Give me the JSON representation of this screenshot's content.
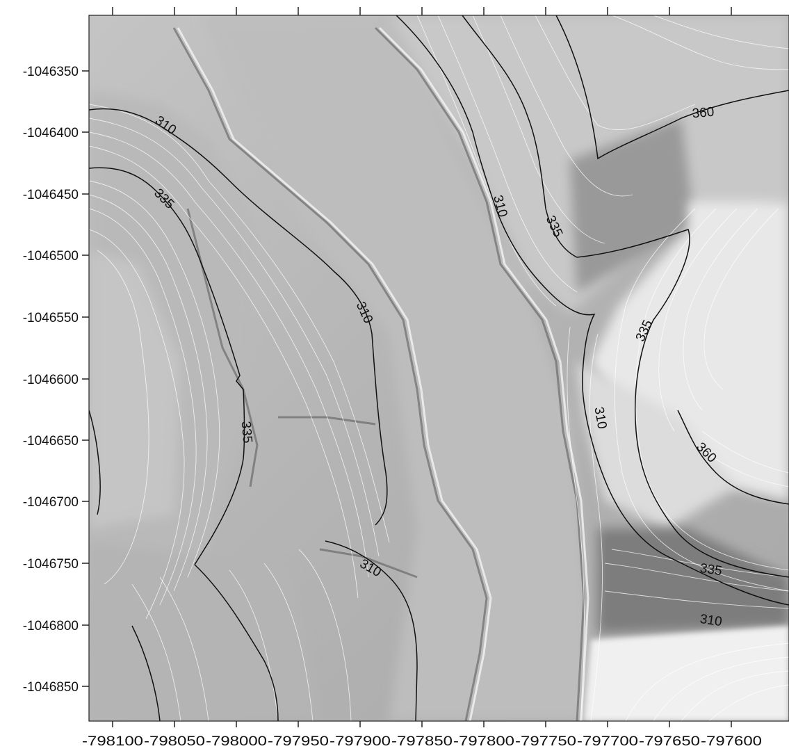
{
  "map": {
    "x_ticks": [
      "-798100",
      "-798050",
      "-798000",
      "-797950",
      "-797900",
      "-797850",
      "-797800",
      "-797750",
      "-797700",
      "-797650",
      "-797600"
    ],
    "y_ticks": [
      "-1046350",
      "-1046400",
      "-1046450",
      "-1046500",
      "-1046550",
      "-1046600",
      "-1046650",
      "-1046700",
      "-1046750",
      "-1046800",
      "-1046850"
    ],
    "contour_labels": [
      {
        "text": "310"
      },
      {
        "text": "335"
      },
      {
        "text": "310"
      },
      {
        "text": "335"
      },
      {
        "text": "310"
      },
      {
        "text": "335"
      },
      {
        "text": "360"
      },
      {
        "text": "335"
      },
      {
        "text": "310"
      },
      {
        "text": "360"
      },
      {
        "text": "335"
      },
      {
        "text": "310"
      },
      {
        "text": "310"
      }
    ],
    "styles": {
      "major_contour_color": "#111111",
      "minor_contour_color": "#ffffff",
      "hillshade_base": "#b8b8b8"
    }
  }
}
